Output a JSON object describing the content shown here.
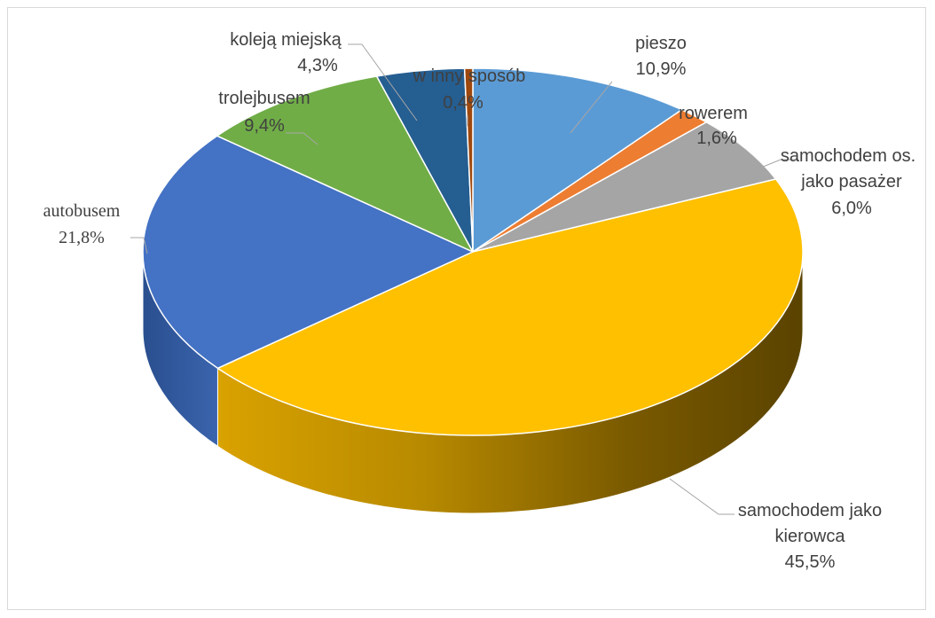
{
  "chart_data": {
    "type": "pie",
    "title": "",
    "style": "3d",
    "slices": [
      {
        "label": "pieszo",
        "value": 10.9,
        "value_label": "10,9%",
        "color": "#5b9bd5"
      },
      {
        "label": "rowerem",
        "value": 1.6,
        "value_label": "1,6%",
        "color": "#ed7d31"
      },
      {
        "label": "samochodem os. jako pasażer",
        "value": 6.0,
        "value_label": "6,0%",
        "color": "#a5a5a5"
      },
      {
        "label": "samochodem jako kierowca",
        "value": 45.5,
        "value_label": "45,5%",
        "color": "#ffc000"
      },
      {
        "label": "autobusem",
        "value": 21.8,
        "value_label": "21,8%",
        "color": "#4472c4"
      },
      {
        "label": "trolejbusem",
        "value": 9.4,
        "value_label": "9,4%",
        "color": "#70ad47"
      },
      {
        "label": "koleją miejską",
        "value": 4.3,
        "value_label": "4,3%",
        "color": "#255e91"
      },
      {
        "label": "w innym sposób",
        "value": 0.4,
        "value_label": "0,4%",
        "color": "#9e480e"
      }
    ]
  },
  "labels": {
    "pieszo_name": "pieszo",
    "pieszo_value": "10,9%",
    "rowerem_name": "rowerem",
    "rowerem_value": "1,6%",
    "pasazer_line1": "samochodem os.",
    "pasazer_line2": "jako pasażer",
    "pasazer_value": "6,0%",
    "kierowca_line1": "samochodem jako",
    "kierowca_line2": "kierowca",
    "kierowca_value": "45,5%",
    "autobusem_name": "autobusem",
    "autobusem_value": "21,8%",
    "trolejbusem_name": "trolejbusem",
    "trolejbusem_value": "9,4%",
    "koleja_name": "koleją miejską",
    "koleja_value": "4,3%",
    "inny_name": "w inny sposób",
    "inny_value": "0,4%"
  }
}
